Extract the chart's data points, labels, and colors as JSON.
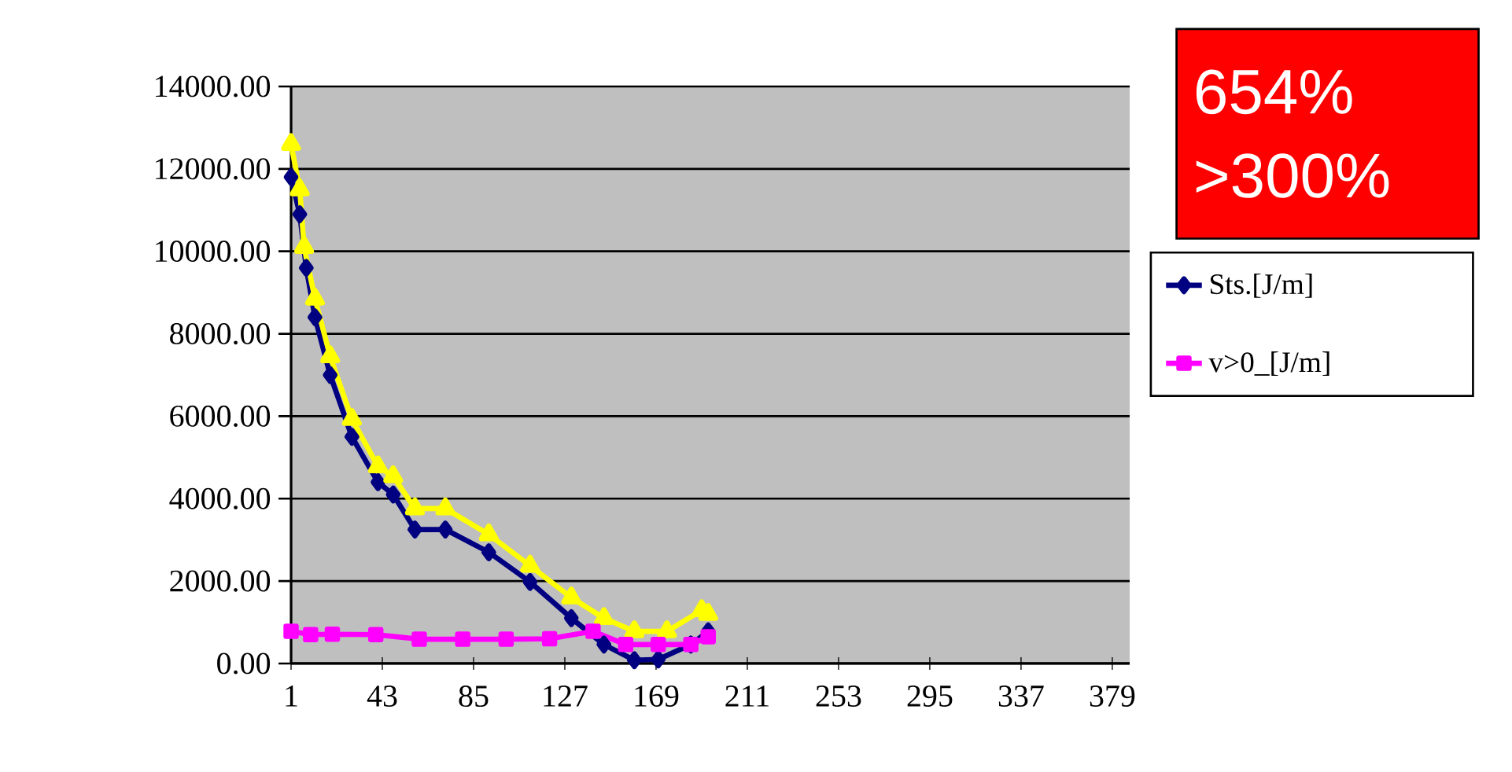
{
  "chart_data": {
    "type": "line",
    "xlim": [
      1,
      387
    ],
    "xticks": [
      1,
      43,
      85,
      127,
      169,
      211,
      253,
      295,
      337,
      379
    ],
    "ylim": [
      0,
      14000
    ],
    "yticks": [
      {
        "value": 0,
        "label": "0.00"
      },
      {
        "value": 2000,
        "label": "2000.00"
      },
      {
        "value": 4000,
        "label": "4000.00"
      },
      {
        "value": 6000,
        "label": "6000.00"
      },
      {
        "value": 8000,
        "label": "8000.00"
      },
      {
        "value": 10000,
        "label": "10000.00"
      },
      {
        "value": 12000,
        "label": "12000.00"
      },
      {
        "value": 14000,
        "label": "14000.00"
      }
    ],
    "grid": "y",
    "legend": "right",
    "annotations": [
      "654%",
      ">300%"
    ],
    "series": [
      {
        "name": "Sts.[J/m]",
        "color": "#000080",
        "marker": "diamond",
        "x": [
          1,
          5,
          8,
          12,
          19,
          29,
          41,
          48,
          58,
          72,
          92,
          111,
          130,
          145,
          159,
          170,
          185,
          193
        ],
        "values": [
          11800,
          10900,
          9600,
          8400,
          7000,
          5500,
          4400,
          4100,
          3250,
          3250,
          2700,
          1980,
          1100,
          460,
          80,
          100,
          460,
          780
        ]
      },
      {
        "color": "#ffff00",
        "marker": "triangle",
        "x": [
          1,
          5,
          7,
          12,
          19,
          29,
          41,
          48,
          58,
          72,
          92,
          111,
          130,
          145,
          159,
          174,
          190,
          193
        ],
        "values": [
          12600,
          11500,
          10100,
          8850,
          7450,
          5930,
          4780,
          4540,
          3760,
          3760,
          3130,
          2370,
          1600,
          1100,
          780,
          780,
          1290,
          1200
        ]
      },
      {
        "name": "v>0_[J/m]",
        "color": "#ff00ff",
        "marker": "square",
        "x": [
          1,
          10,
          20,
          40,
          60,
          80,
          100,
          120,
          140,
          155,
          170,
          185,
          193
        ],
        "values": [
          780,
          700,
          710,
          700,
          590,
          590,
          590,
          600,
          780,
          460,
          460,
          460,
          650
        ]
      }
    ]
  }
}
